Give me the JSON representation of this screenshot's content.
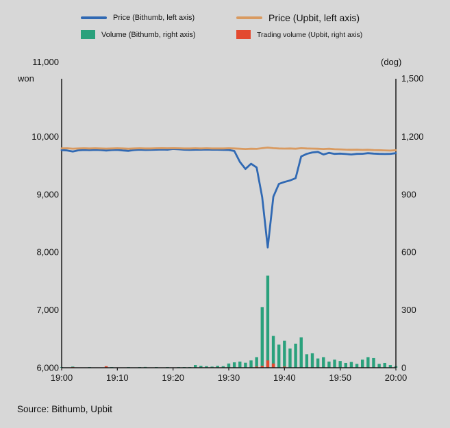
{
  "legend": {
    "items": [
      {
        "id": "bithumb-price",
        "label": "Price (Bithumb, left axis)",
        "type": "line",
        "color": "#3069b3"
      },
      {
        "id": "upbit-price",
        "label": "Price (Upbit, left axis)",
        "type": "line",
        "color": "#d99a60"
      },
      {
        "id": "bithumb-volume",
        "label": "Volume (Bithumb, right axis)",
        "type": "rect",
        "color": "#2aa17c"
      },
      {
        "id": "upbit-volume",
        "label": "Trading volume (Upbit, right axis)",
        "type": "rect",
        "color": "#e3492f"
      }
    ]
  },
  "axes": {
    "left_top_label": "11,000",
    "left_unit": "won",
    "right_unit": "(dog)",
    "right_top_label": "1,500",
    "left_ticks": [
      "10,000",
      "9,000",
      "8,000",
      "7,000",
      "6,000"
    ],
    "right_ticks": [
      "1,200",
      "900",
      "600",
      "300",
      "0"
    ],
    "x_ticks": [
      "19:00",
      "19:10",
      "19:20",
      "19:30",
      "19:40",
      "19:50",
      "20:00"
    ]
  },
  "source": "Source: Bithumb, Upbit",
  "chart_data": {
    "type": "line+bar",
    "title": "",
    "x_axis": {
      "start": "19:00",
      "end": "20:00",
      "step_minutes": 1,
      "tick_labels": [
        "19:00",
        "19:10",
        "19:20",
        "19:30",
        "19:40",
        "19:50",
        "20:00"
      ]
    },
    "left_axis": {
      "unit": "won",
      "min": 6000,
      "max": 11000,
      "tick_values": [
        10000,
        9000,
        8000,
        7000,
        6000
      ]
    },
    "right_axis": {
      "unit": "(dog)",
      "min": 0,
      "max": 1500,
      "tick_values": [
        1200,
        900,
        600,
        300,
        0
      ]
    },
    "legend_position": "top",
    "grid": false,
    "series": [
      {
        "id": "bithumb-price",
        "name": "Price (Bithumb, left axis)",
        "type": "line",
        "axis": "left",
        "color": "#3069b3",
        "values": [
          9765,
          9760,
          9742,
          9762,
          9768,
          9765,
          9770,
          9766,
          9758,
          9766,
          9770,
          9760,
          9752,
          9766,
          9772,
          9768,
          9770,
          9772,
          9776,
          9772,
          9786,
          9780,
          9772,
          9770,
          9772,
          9772,
          9776,
          9772,
          9772,
          9770,
          9768,
          9750,
          9560,
          9440,
          9530,
          9465,
          8950,
          8080,
          8960,
          9180,
          9215,
          9240,
          9280,
          9655,
          9700,
          9725,
          9735,
          9690,
          9718,
          9700,
          9705,
          9698,
          9690,
          9700,
          9702,
          9712,
          9705,
          9700,
          9698,
          9700,
          9712
        ]
      },
      {
        "id": "upbit-price",
        "name": "Price (Upbit, left axis)",
        "type": "line",
        "axis": "left",
        "color": "#d99a60",
        "values": [
          9795,
          9797,
          9790,
          9794,
          9797,
          9794,
          9797,
          9794,
          9791,
          9794,
          9797,
          9794,
          9789,
          9794,
          9797,
          9794,
          9794,
          9797,
          9799,
          9797,
          9799,
          9797,
          9794,
          9794,
          9797,
          9794,
          9797,
          9794,
          9794,
          9794,
          9797,
          9794,
          9789,
          9784,
          9789,
          9787,
          9799,
          9809,
          9799,
          9794,
          9791,
          9794,
          9789,
          9799,
          9794,
          9791,
          9789,
          9784,
          9789,
          9781,
          9779,
          9774,
          9771,
          9774,
          9769,
          9771,
          9767,
          9764,
          9761,
          9757,
          9764
        ]
      },
      {
        "id": "bithumb-volume",
        "name": "Volume (Bithumb, right axis)",
        "type": "bar",
        "axis": "right",
        "color": "#2aa17c",
        "values": [
          2,
          0,
          6,
          0,
          0,
          3,
          0,
          0,
          0,
          2,
          0,
          0,
          3,
          0,
          2,
          4,
          0,
          2,
          0,
          3,
          0,
          2,
          3,
          2,
          14,
          10,
          8,
          6,
          10,
          8,
          22,
          28,
          32,
          26,
          38,
          55,
          315,
          478,
          165,
          120,
          140,
          100,
          125,
          158,
          70,
          75,
          48,
          55,
          32,
          42,
          35,
          25,
          30,
          20,
          42,
          55,
          50,
          20,
          25,
          14,
          8
        ]
      },
      {
        "id": "upbit-volume",
        "name": "Trading volume (Upbit, right axis)",
        "type": "bar",
        "axis": "right",
        "color": "#e3492f",
        "values": [
          0,
          0,
          3,
          0,
          0,
          0,
          0,
          0,
          8,
          0,
          0,
          0,
          0,
          0,
          0,
          0,
          0,
          0,
          0,
          0,
          0,
          0,
          0,
          0,
          0,
          0,
          0,
          0,
          0,
          0,
          0,
          0,
          0,
          0,
          0,
          6,
          10,
          38,
          22,
          0,
          6,
          0,
          0,
          0,
          0,
          0,
          0,
          0,
          0,
          0,
          0,
          0,
          0,
          0,
          0,
          0,
          0,
          0,
          0,
          0,
          0
        ]
      }
    ]
  }
}
